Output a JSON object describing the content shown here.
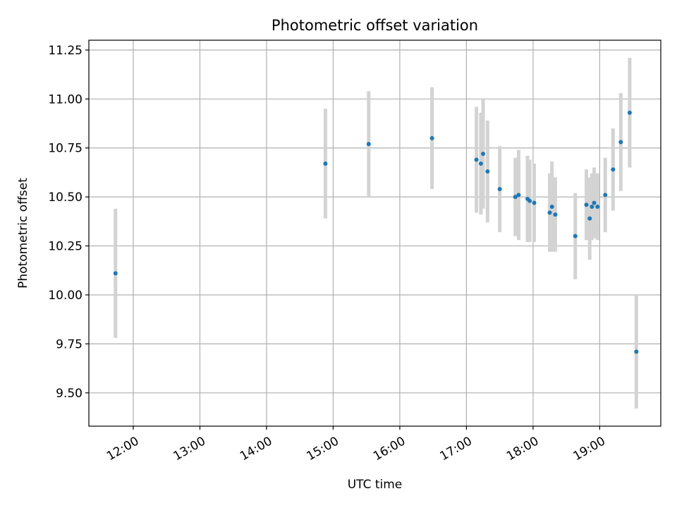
{
  "chart_data": {
    "type": "scatter",
    "title": "Photometric offset variation",
    "xlabel": "UTC time",
    "ylabel": "Photometric offset",
    "xlim": [
      "11:20",
      "19:55"
    ],
    "ylim": [
      9.33,
      11.3
    ],
    "grid": true,
    "x_ticks": [
      "12:00",
      "13:00",
      "14:00",
      "15:00",
      "16:00",
      "17:00",
      "18:00",
      "19:00"
    ],
    "y_ticks": [
      "9.50",
      "9.75",
      "10.00",
      "10.25",
      "10.50",
      "10.75",
      "11.00",
      "11.25"
    ],
    "marker_color": "#1f77b4",
    "errorbar_color": "#d3d3d3",
    "series": [
      {
        "points": [
          {
            "t": "11:44",
            "y": 10.11,
            "err": 0.33
          },
          {
            "t": "14:53",
            "y": 10.67,
            "err": 0.28
          },
          {
            "t": "15:32",
            "y": 10.77,
            "err": 0.27
          },
          {
            "t": "16:29",
            "y": 10.8,
            "err": 0.26
          },
          {
            "t": "17:09",
            "y": 10.69,
            "err": 0.27
          },
          {
            "t": "17:13",
            "y": 10.67,
            "err": 0.26
          },
          {
            "t": "17:15",
            "y": 10.72,
            "err": 0.28
          },
          {
            "t": "17:19",
            "y": 10.63,
            "err": 0.26
          },
          {
            "t": "17:30",
            "y": 10.54,
            "err": 0.22
          },
          {
            "t": "17:44",
            "y": 10.5,
            "err": 0.2
          },
          {
            "t": "17:47",
            "y": 10.51,
            "err": 0.23
          },
          {
            "t": "17:55",
            "y": 10.49,
            "err": 0.22
          },
          {
            "t": "17:57",
            "y": 10.48,
            "err": 0.21
          },
          {
            "t": "18:01",
            "y": 10.47,
            "err": 0.2
          },
          {
            "t": "18:15",
            "y": 10.42,
            "err": 0.2
          },
          {
            "t": "18:17",
            "y": 10.45,
            "err": 0.23
          },
          {
            "t": "18:20",
            "y": 10.41,
            "err": 0.19
          },
          {
            "t": "18:38",
            "y": 10.3,
            "err": 0.22
          },
          {
            "t": "18:48",
            "y": 10.46,
            "err": 0.18
          },
          {
            "t": "18:51",
            "y": 10.39,
            "err": 0.21
          },
          {
            "t": "18:53",
            "y": 10.45,
            "err": 0.17
          },
          {
            "t": "18:55",
            "y": 10.47,
            "err": 0.18
          },
          {
            "t": "18:58",
            "y": 10.45,
            "err": 0.17
          },
          {
            "t": "19:05",
            "y": 10.51,
            "err": 0.19
          },
          {
            "t": "19:12",
            "y": 10.64,
            "err": 0.21
          },
          {
            "t": "19:19",
            "y": 10.78,
            "err": 0.25
          },
          {
            "t": "19:27",
            "y": 10.93,
            "err": 0.28
          },
          {
            "t": "19:33",
            "y": 9.71,
            "err": 0.29
          }
        ]
      }
    ]
  }
}
